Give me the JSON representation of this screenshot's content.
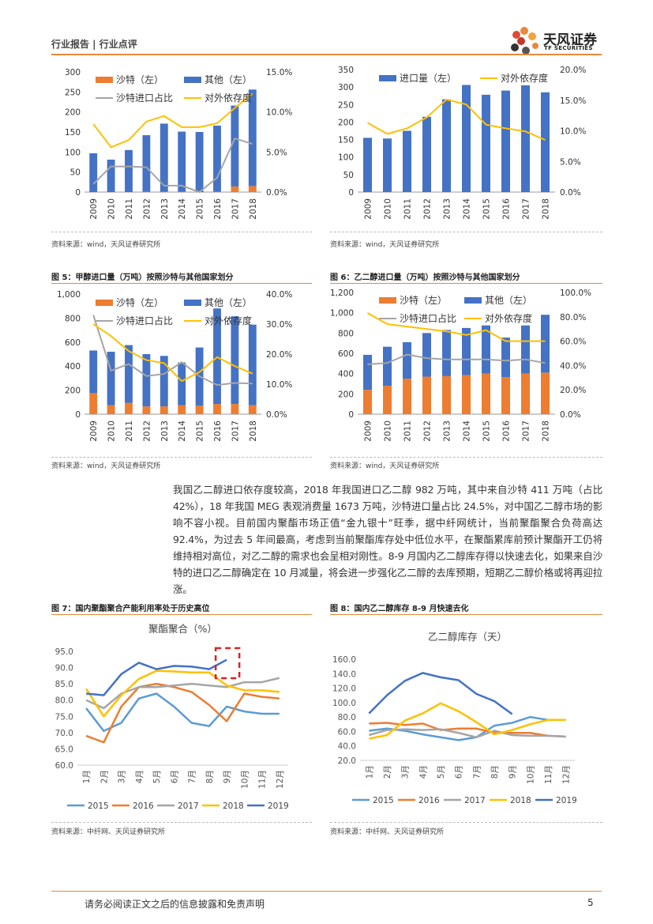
{
  "header": {
    "report_type": "行业报告 | 行业点评",
    "logo_cn": "天风证券",
    "logo_en": "TF SECURITIES"
  },
  "colors": {
    "orange": "#ed7d31",
    "blue": "#4472c4",
    "gray": "#a5a5a5",
    "yellow": "#ffc000",
    "accent": "#e8883a",
    "s2015": "#5b9bd5",
    "s2016": "#ed7d31",
    "s2017": "#a5a5a5",
    "s2018": "#ffc000",
    "s2019": "#4472c4"
  },
  "sources": {
    "c1": "资料来源：wind，天风证券研究所",
    "c2": "资料来源：wind，天风证券研究所",
    "c3": "资料来源：wind，天风证券研究所",
    "c4": "资料来源：wind，天风证券研究所",
    "c5": "资料来源：中纤网、天风证券研究所",
    "c6": "资料来源：中纤网、天风证券研究所"
  },
  "captions": {
    "fig5": "图 5：甲醇进口量（万吨）按照沙特与其他国家划分",
    "fig6": "图 6：乙二醇进口量（万吨）按照沙特与其他国家划分",
    "fig7": "图 7：国内聚酯聚合产能利用率处于历史高位",
    "fig8": "图 8：国内乙二醇库存 8-9 月快速去化"
  },
  "paragraph": "我国乙二醇进口依存度较高，2018 年我国进口乙二醇 982 万吨，其中来自沙特 411 万吨（占比 42%），18 年我国 MEG 表观消费量 1673 万吨，沙特进口量占比 24.5%，对中国乙二醇市场的影响不容小视。目前国内聚酯市场正值“金九银十”旺季，据中纤网统计，当前聚酯聚合负荷高达 92.4%，为过去 5 年间最高，考虑到当前聚酯库存处中低位水平，在聚酯累库前预计聚酯开工仍将维持相对高位，对乙二醇的需求也会呈相对刚性。8-9 月国内乙二醇库存得以快速去化，如果来自沙特的进口乙二醇确定在 10 月减量，将会进一步强化乙二醇的去库预期，短期乙二醇价格或将再迎拉涨。",
  "footer": {
    "disclaimer": "请务必阅读正文之后的信息披露和免责声明",
    "page": "5"
  },
  "chart_data": [
    {
      "id": "c1",
      "type": "bar",
      "stacked": true,
      "categories": [
        "2009",
        "2010",
        "2011",
        "2012",
        "2013",
        "2014",
        "2015",
        "2016",
        "2017",
        "2018"
      ],
      "series": [
        {
          "name": "沙特（左）",
          "axis": "left",
          "values": [
            0,
            0,
            0,
            1,
            1,
            1,
            0,
            1,
            14,
            15
          ]
        },
        {
          "name": "其他（左）",
          "axis": "left",
          "values": [
            97,
            81,
            105,
            141,
            170,
            150,
            150,
            165,
            202,
            241
          ]
        }
      ],
      "lines": [
        {
          "name": "沙特进口占比",
          "axis": "right",
          "values": [
            1,
            3.2,
            3.2,
            3.1,
            0.8,
            0.8,
            0,
            1.8,
            6.7,
            6
          ]
        },
        {
          "name": "对外依存度",
          "axis": "right",
          "values": [
            8.5,
            5.6,
            6.5,
            8.8,
            9.5,
            8.1,
            8.1,
            8.6,
            10.5,
            12.3
          ]
        }
      ],
      "ylim_left": [
        0,
        300
      ],
      "yticks_left": [
        "0",
        "50",
        "100",
        "150",
        "200",
        "250",
        "300"
      ],
      "ylim_right": [
        0,
        15
      ],
      "yticks_right": [
        "0.0%",
        "5.0%",
        "10.0%",
        "15.0%"
      ]
    },
    {
      "id": "c2",
      "type": "bar",
      "stacked": false,
      "categories": [
        "2009",
        "2010",
        "2011",
        "2012",
        "2013",
        "2014",
        "2015",
        "2016",
        "2017",
        "2018"
      ],
      "series": [
        {
          "name": "进口量（左）",
          "axis": "left",
          "values": [
            155,
            153,
            175,
            215,
            265,
            306,
            278,
            290,
            305,
            285
          ]
        }
      ],
      "lines": [
        {
          "name": "对外依存度",
          "axis": "right",
          "values": [
            11.3,
            9.5,
            10.4,
            12.2,
            15.1,
            14.3,
            11,
            10.4,
            9.9,
            8.5
          ]
        }
      ],
      "ylim_left": [
        0,
        350
      ],
      "yticks_left": [
        "0",
        "50",
        "100",
        "150",
        "200",
        "250",
        "300",
        "350"
      ],
      "ylim_right": [
        0,
        20
      ],
      "yticks_right": [
        "0.0%",
        "5.0%",
        "10.0%",
        "15.0%",
        "20.0%"
      ]
    },
    {
      "id": "c3",
      "type": "bar",
      "stacked": true,
      "categories": [
        "2009",
        "2010",
        "2011",
        "2012",
        "2013",
        "2014",
        "2015",
        "2016",
        "2017",
        "2018"
      ],
      "series": [
        {
          "name": "沙特（左）",
          "axis": "left",
          "values": [
            175,
            75,
            95,
            65,
            65,
            75,
            70,
            85,
            85,
            75
          ]
        },
        {
          "name": "其他（左）",
          "axis": "left",
          "values": [
            355,
            445,
            480,
            435,
            420,
            355,
            485,
            795,
            730,
            670
          ]
        }
      ],
      "lines": [
        {
          "name": "沙特进口占比",
          "axis": "right",
          "values": [
            33,
            14.5,
            16.7,
            12.7,
            13.4,
            17.3,
            12.6,
            9.7,
            10.4,
            10.2
          ]
        },
        {
          "name": "对外依存度",
          "axis": "right",
          "values": [
            30,
            26,
            21,
            18,
            17,
            11,
            14,
            19,
            16,
            13.5
          ]
        }
      ],
      "ylim_left": [
        0,
        1000
      ],
      "yticks_left": [
        "0",
        "200",
        "400",
        "600",
        "800",
        "1,000"
      ],
      "ylim_right": [
        0,
        40
      ],
      "yticks_right": [
        "0.0%",
        "10.0%",
        "20.0%",
        "30.0%",
        "40.0%"
      ]
    },
    {
      "id": "c4",
      "type": "bar",
      "stacked": true,
      "categories": [
        "2009",
        "2010",
        "2011",
        "2012",
        "2013",
        "2014",
        "2015",
        "2016",
        "2017",
        "2018"
      ],
      "series": [
        {
          "name": "沙特（左）",
          "axis": "left",
          "values": [
            240,
            280,
            350,
            370,
            375,
            385,
            400,
            365,
            400,
            410
          ]
        },
        {
          "name": "其他（左）",
          "axis": "left",
          "values": [
            345,
            385,
            360,
            430,
            455,
            465,
            475,
            390,
            475,
            570
          ]
        }
      ],
      "lines": [
        {
          "name": "沙特进口占比",
          "axis": "right",
          "values": [
            41,
            42,
            49,
            46,
            45,
            45,
            45,
            44,
            45,
            42
          ]
        },
        {
          "name": "对外依存度",
          "axis": "right",
          "values": [
            83,
            74,
            72,
            70,
            68,
            65,
            69,
            60,
            60,
            60
          ]
        }
      ],
      "ylim_left": [
        0,
        1200
      ],
      "yticks_left": [
        "0",
        "200",
        "400",
        "600",
        "800",
        "1,000",
        "1,200"
      ],
      "ylim_right": [
        0,
        100
      ],
      "yticks_right": [
        "0.0%",
        "20.0%",
        "40.0%",
        "60.0%",
        "80.0%",
        "100.0%"
      ]
    },
    {
      "id": "c5",
      "type": "line",
      "title": "聚酯聚合（%）",
      "categories": [
        "1月",
        "2月",
        "3月",
        "4月",
        "5月",
        "6月",
        "7月",
        "8月",
        "9月",
        "10月",
        "11月",
        "12月"
      ],
      "series": [
        {
          "name": "2015",
          "values": [
            77.5,
            70.5,
            73,
            80.5,
            82,
            78,
            73,
            72,
            78,
            76.5,
            75.8,
            75.8
          ]
        },
        {
          "name": "2016",
          "values": [
            69,
            67,
            78,
            84,
            85,
            84,
            82.5,
            78.5,
            73.5,
            82,
            81,
            80.5
          ]
        },
        {
          "name": "2017",
          "values": [
            80,
            77.5,
            82,
            84,
            84,
            84.5,
            85,
            84.5,
            84,
            85.5,
            85.5,
            86.8
          ]
        },
        {
          "name": "2018",
          "values": [
            83.5,
            75,
            81.5,
            86.5,
            89,
            88.8,
            88.5,
            88.5,
            84.5,
            83,
            83,
            82.5
          ]
        },
        {
          "name": "2019",
          "values": [
            82,
            81.5,
            88,
            91.5,
            89.5,
            90.5,
            90.3,
            89.5,
            92.4,
            null,
            null,
            null
          ]
        }
      ],
      "ylim": [
        60,
        95
      ],
      "yticks": [
        "60.0",
        "65.0",
        "70.0",
        "75.0",
        "80.0",
        "85.0",
        "90.0",
        "95.0"
      ]
    },
    {
      "id": "c6",
      "type": "line",
      "title": "乙二醇库存（天）",
      "categories": [
        "1月",
        "2月",
        "3月",
        "4月",
        "5月",
        "6月",
        "7月",
        "8月",
        "9月",
        "10月",
        "11月",
        "12月"
      ],
      "series": [
        {
          "name": "2015",
          "values": [
            61,
            64,
            61,
            56,
            52,
            48,
            52,
            68,
            72,
            80,
            76,
            76
          ]
        },
        {
          "name": "2016",
          "values": [
            71,
            72,
            69,
            71,
            62,
            64,
            64,
            58,
            58,
            58,
            54,
            53
          ]
        },
        {
          "name": "2017",
          "values": [
            55,
            62,
            63,
            62,
            63,
            58,
            52,
            61,
            55,
            54,
            54,
            53
          ]
        },
        {
          "name": "2018",
          "values": [
            50,
            55,
            75,
            85,
            99,
            88,
            73,
            56,
            62,
            70,
            76,
            76
          ]
        },
        {
          "name": "2019",
          "values": [
            85,
            110,
            130,
            141,
            135,
            131,
            112,
            102,
            84,
            null,
            null,
            null
          ]
        }
      ],
      "ylim": [
        20,
        160
      ],
      "yticks": [
        "20.0",
        "40.0",
        "60.0",
        "80.0",
        "100.0",
        "120.0",
        "140.0",
        "160.0"
      ]
    }
  ]
}
